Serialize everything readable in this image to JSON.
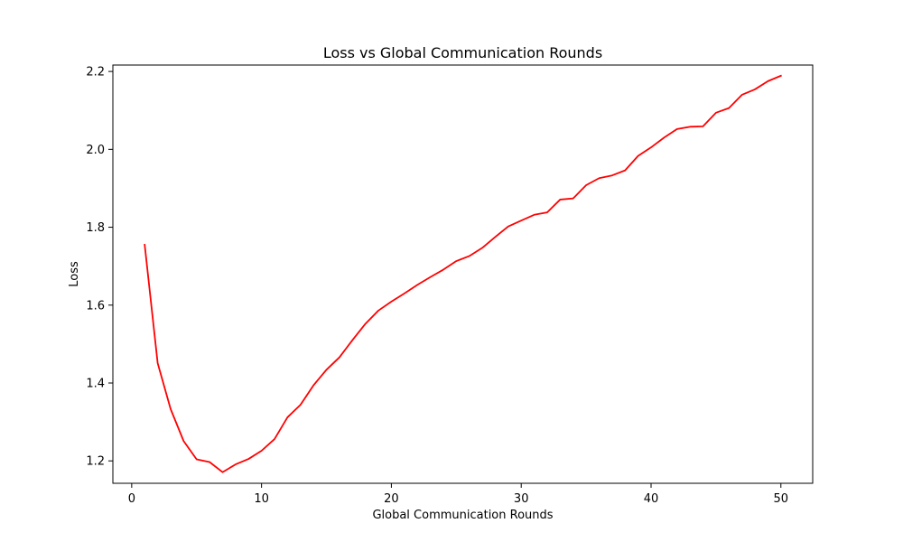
{
  "chart_data": {
    "type": "line",
    "title": "Loss vs Global Communication Rounds",
    "xlabel": "Global Communication Rounds",
    "ylabel": "Loss",
    "xlim": [
      -1.45,
      52.45
    ],
    "ylim": [
      1.1425,
      2.2165
    ],
    "xticks": [
      0,
      10,
      20,
      30,
      40,
      50
    ],
    "yticks": [
      1.2,
      1.4,
      1.6,
      1.8,
      2.0,
      2.2
    ],
    "xtick_labels": [
      "0",
      "10",
      "20",
      "30",
      "40",
      "50"
    ],
    "ytick_labels": [
      "1.2",
      "1.4",
      "1.6",
      "1.8",
      "2.0",
      "2.2"
    ],
    "grid": false,
    "series": [
      {
        "color": "#ff0000",
        "x": [
          1,
          2,
          3,
          4,
          5,
          6,
          7,
          8,
          9,
          10,
          11,
          12,
          13,
          14,
          15,
          16,
          17,
          18,
          19,
          20,
          21,
          22,
          23,
          24,
          25,
          26,
          27,
          28,
          29,
          30,
          31,
          32,
          33,
          34,
          35,
          36,
          37,
          38,
          39,
          40,
          41,
          42,
          43,
          44,
          45,
          46,
          47,
          48,
          49,
          50
        ],
        "y": [
          1.755,
          1.451,
          1.333,
          1.251,
          1.204,
          1.197,
          1.171,
          1.191,
          1.205,
          1.226,
          1.256,
          1.312,
          1.344,
          1.394,
          1.434,
          1.466,
          1.51,
          1.552,
          1.586,
          1.609,
          1.63,
          1.652,
          1.672,
          1.691,
          1.713,
          1.726,
          1.747,
          1.775,
          1.802,
          1.817,
          1.832,
          1.838,
          1.871,
          1.874,
          1.908,
          1.926,
          1.933,
          1.946,
          1.983,
          2.005,
          2.03,
          2.052,
          2.058,
          2.059,
          2.094,
          2.106,
          2.14,
          2.154,
          2.175,
          2.189
        ]
      }
    ]
  }
}
